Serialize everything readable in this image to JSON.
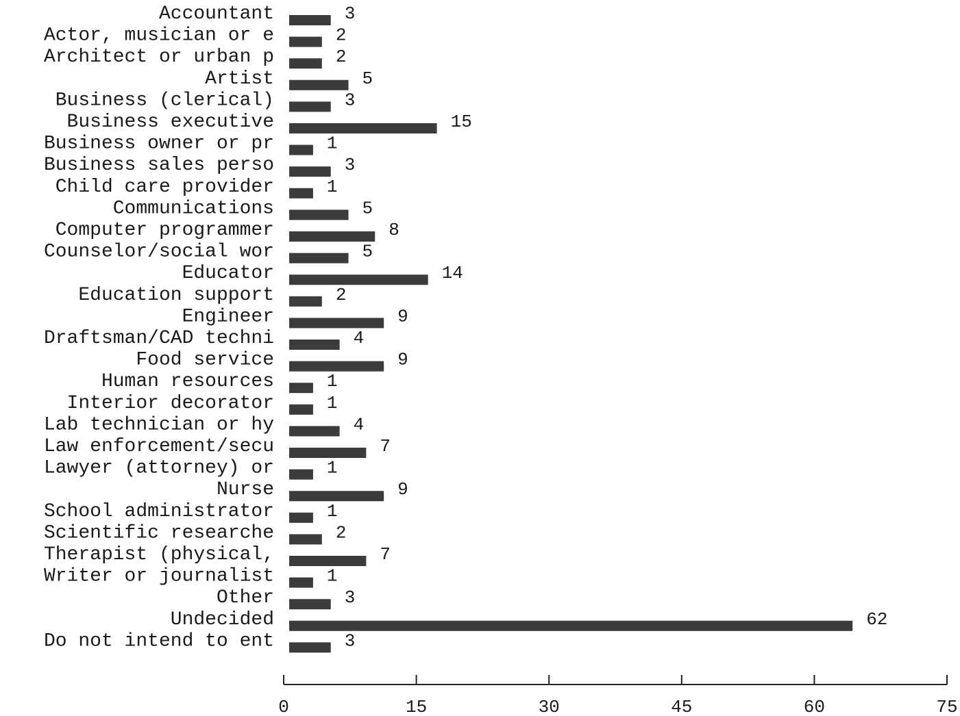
{
  "chart_data": {
    "type": "bar",
    "orientation": "horizontal",
    "title": "",
    "xlabel": "",
    "ylabel": "",
    "categories": [
      "Accountant",
      "Actor, musician or e",
      "Architect or urban p",
      "Artist",
      "Business (clerical)",
      "Business executive",
      "Business owner or pr",
      "Business sales perso",
      "Child care provider",
      "Communications",
      "Computer programmer",
      "Counselor/social wor",
      "Educator",
      "Education support",
      "Engineer",
      "Draftsman/CAD techni",
      "Food service",
      "Human resources",
      "Interior decorator",
      "Lab technician or hy",
      "Law enforcement/secu",
      "Lawyer (attorney) or",
      "Nurse",
      "School administrator",
      "Scientific researche",
      "Therapist (physical,",
      "Writer or journalist",
      "Other",
      "Undecided",
      "Do not intend to ent"
    ],
    "values": [
      3,
      2,
      2,
      5,
      3,
      15,
      1,
      3,
      1,
      5,
      8,
      5,
      14,
      2,
      9,
      4,
      9,
      1,
      1,
      4,
      7,
      1,
      9,
      1,
      2,
      7,
      1,
      3,
      62,
      3
    ],
    "xlim": [
      0,
      75
    ],
    "x_ticks": [
      "0",
      "15",
      "30",
      "45",
      "60",
      "75"
    ],
    "grid": false,
    "legend": "none",
    "bar_color": "#3c3c3c"
  }
}
